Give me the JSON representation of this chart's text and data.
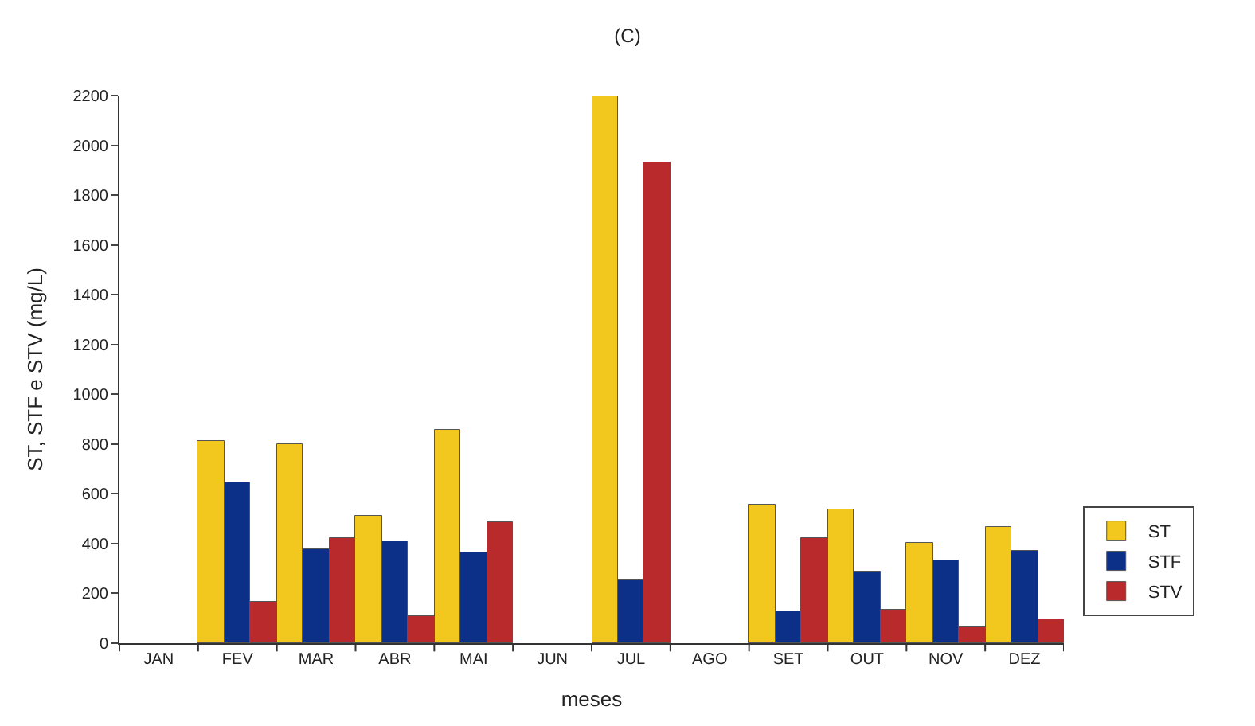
{
  "chart_data": {
    "type": "bar",
    "title": "(C)",
    "xlabel": "meses",
    "ylabel": "ST, STF e STV (mg/L)",
    "categories": [
      "JAN",
      "FEV",
      "MAR",
      "ABR",
      "MAI",
      "JUN",
      "JUL",
      "AGO",
      "SET",
      "OUT",
      "NOV",
      "DEZ"
    ],
    "series": [
      {
        "name": "ST",
        "color": "#f2c81e",
        "values": [
          null,
          810,
          800,
          510,
          855,
          null,
          2200,
          null,
          555,
          540,
          400,
          465
        ]
      },
      {
        "name": "STF",
        "color": "#0c2f88",
        "values": [
          null,
          645,
          378,
          410,
          365,
          null,
          257,
          null,
          127,
          286,
          331,
          373
        ]
      },
      {
        "name": "STV",
        "color": "#b82a2c",
        "values": [
          null,
          165,
          423,
          107,
          487,
          null,
          1933,
          null,
          425,
          134,
          63,
          94
        ]
      }
    ],
    "ylim": [
      0,
      2200
    ],
    "yticks": [
      0,
      200,
      400,
      600,
      800,
      1000,
      1200,
      1400,
      1600,
      1800,
      2000,
      2200
    ],
    "legend": "right"
  }
}
